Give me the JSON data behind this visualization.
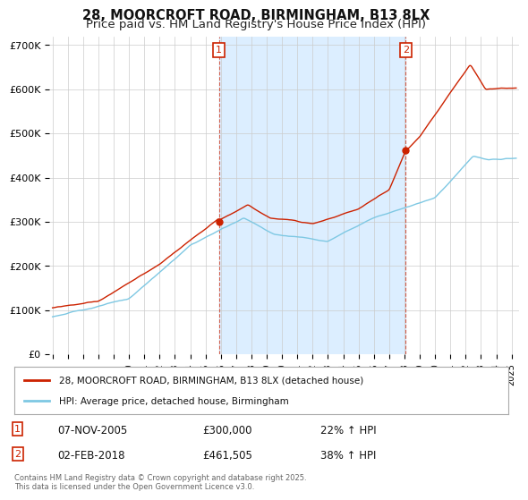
{
  "title": "28, MOORCROFT ROAD, BIRMINGHAM, B13 8LX",
  "subtitle": "Price paid vs. HM Land Registry's House Price Index (HPI)",
  "background_color": "#ffffff",
  "grid_color": "#cccccc",
  "ylim": [
    0,
    720000
  ],
  "yticks": [
    0,
    100000,
    200000,
    300000,
    400000,
    500000,
    600000,
    700000
  ],
  "ytick_labels": [
    "£0",
    "£100K",
    "£200K",
    "£300K",
    "£400K",
    "£500K",
    "£600K",
    "£700K"
  ],
  "xlim_start": 1994.8,
  "xlim_end": 2025.5,
  "xtick_years": [
    1995,
    1996,
    1997,
    1998,
    1999,
    2000,
    2001,
    2002,
    2003,
    2004,
    2005,
    2006,
    2007,
    2008,
    2009,
    2010,
    2011,
    2012,
    2013,
    2014,
    2015,
    2016,
    2017,
    2018,
    2019,
    2020,
    2021,
    2022,
    2023,
    2024,
    2025
  ],
  "hpi_color": "#7ec8e3",
  "price_color": "#cc2200",
  "shade_color": "#dceeff",
  "transaction1_date": 2005.87,
  "transaction1_price": 300000,
  "transaction1_label": "1",
  "transaction1_hpi_pct": "22%",
  "transaction1_date_str": "07-NOV-2005",
  "transaction1_price_str": "£300,000",
  "transaction2_date": 2018.08,
  "transaction2_price": 461505,
  "transaction2_label": "2",
  "transaction2_hpi_pct": "38%",
  "transaction2_date_str": "02-FEB-2018",
  "transaction2_price_str": "£461,505",
  "legend_label_price": "28, MOORCROFT ROAD, BIRMINGHAM, B13 8LX (detached house)",
  "legend_label_hpi": "HPI: Average price, detached house, Birmingham",
  "footer_text": "Contains HM Land Registry data © Crown copyright and database right 2025.\nThis data is licensed under the Open Government Licence v3.0.",
  "title_fontsize": 10.5,
  "subtitle_fontsize": 9.5
}
